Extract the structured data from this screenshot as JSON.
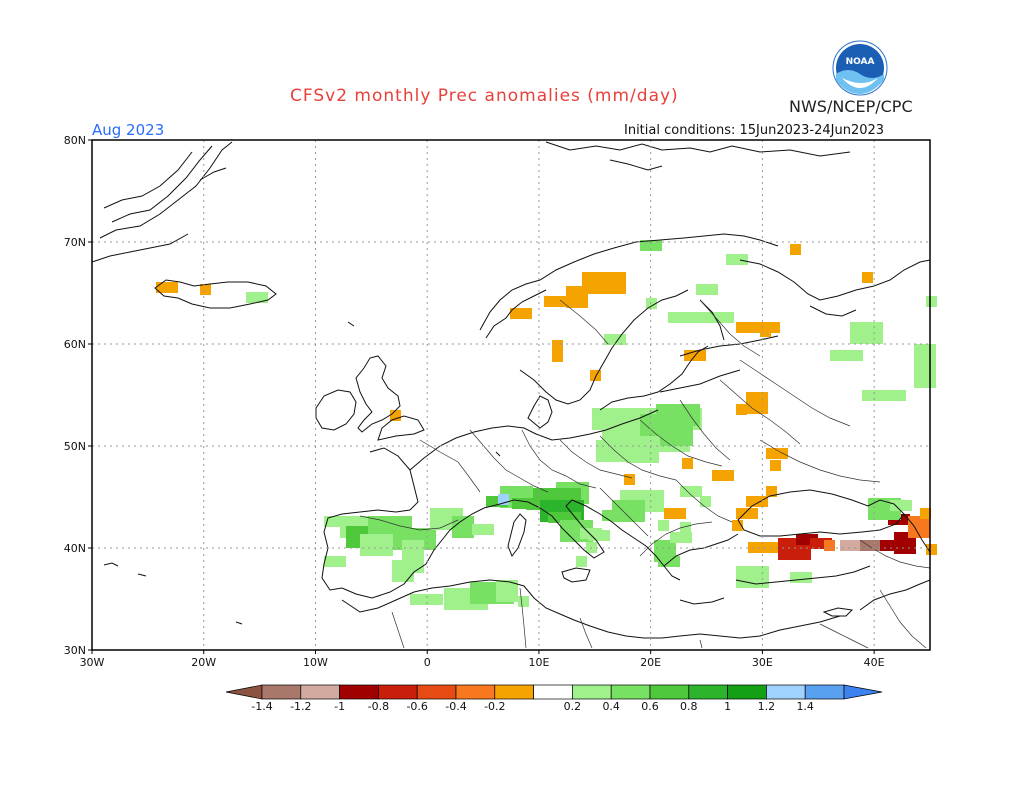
{
  "title": "CFSv2 monthly Prec anomalies (mm/day)",
  "agency": "NWS/NCEP/CPC",
  "logo_text": "NOAA",
  "month_label": "Aug 2023",
  "initial_conditions": "Initial conditions: 15Jun2023-24Jun2023",
  "axes": {
    "lon_labels": [
      "30W",
      "20W",
      "10W",
      "0",
      "10E",
      "20E",
      "30E",
      "40E"
    ],
    "lon_values": [
      -30,
      -20,
      -10,
      0,
      10,
      20,
      30,
      40
    ],
    "lat_labels": [
      "80N",
      "70N",
      "60N",
      "50N",
      "40N",
      "30N"
    ],
    "lat_values": [
      80,
      70,
      60,
      50,
      40,
      30
    ],
    "lon_range": [
      -30,
      45
    ],
    "lat_range": [
      30,
      80
    ]
  },
  "colorbar": {
    "colors": [
      "#8c5440",
      "#a8786a",
      "#d2aaa0",
      "#a00000",
      "#c81e0a",
      "#e84a14",
      "#f87820",
      "#f5a300",
      "#ffffff",
      "#a0f08c",
      "#78e164",
      "#50c83c",
      "#2db42d",
      "#14a014",
      "#a0d2ff",
      "#5aa0f0",
      "#3c82f0"
    ],
    "labels": [
      "-1.4",
      "-1.2",
      "-1",
      "-0.8",
      "-0.6",
      "-0.4",
      "-0.2",
      "0.2",
      "0.4",
      "0.6",
      "0.8",
      "1",
      "1.2",
      "1.4"
    ]
  },
  "colors": {
    "title": "#e8413a",
    "month": "#2a6cff"
  }
}
